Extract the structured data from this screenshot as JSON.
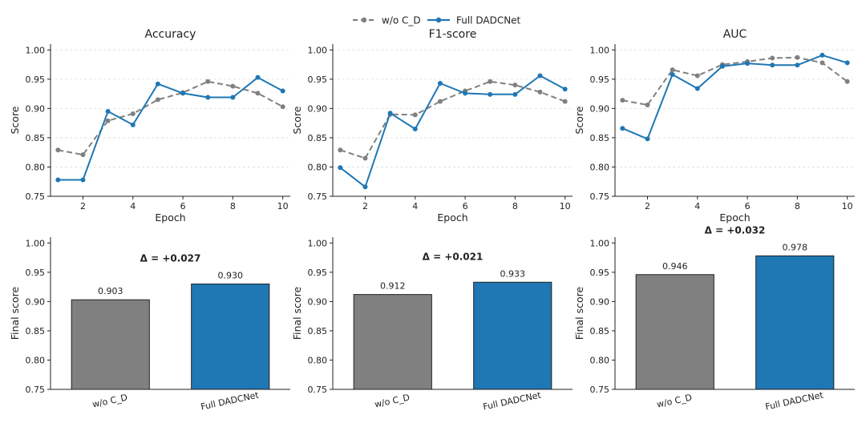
{
  "legend": {
    "placement": "top-center",
    "items": [
      {
        "label": "w/o C_D",
        "color": "#808080",
        "style": "dashed"
      },
      {
        "label": "Full DADCNet",
        "color": "#1f77b4",
        "style": "solid"
      }
    ]
  },
  "chart_data": [
    {
      "type": "line",
      "title": "Accuracy",
      "xlabel": "Epoch",
      "ylabel": "Score",
      "x": [
        1,
        2,
        3,
        4,
        5,
        6,
        7,
        8,
        9,
        10
      ],
      "xlim": [
        0.7,
        10.3
      ],
      "ylim": [
        0.75,
        1.01
      ],
      "xticks": [
        2,
        4,
        6,
        8,
        10
      ],
      "yticks": [
        0.75,
        0.8,
        0.85,
        0.9,
        0.95,
        1.0
      ],
      "grid": "horizontal-dashed",
      "series": [
        {
          "name": "w/o C_D",
          "values": [
            0.829,
            0.821,
            0.879,
            0.891,
            0.915,
            0.927,
            0.946,
            0.938,
            0.926,
            0.903
          ]
        },
        {
          "name": "Full DADCNet",
          "values": [
            0.778,
            0.778,
            0.895,
            0.872,
            0.942,
            0.926,
            0.919,
            0.919,
            0.953,
            0.93
          ]
        }
      ]
    },
    {
      "type": "line",
      "title": "F1-score",
      "xlabel": "Epoch",
      "ylabel": "Score",
      "x": [
        1,
        2,
        3,
        4,
        5,
        6,
        7,
        8,
        9,
        10
      ],
      "xlim": [
        0.7,
        10.3
      ],
      "ylim": [
        0.75,
        1.01
      ],
      "xticks": [
        2,
        4,
        6,
        8,
        10
      ],
      "yticks": [
        0.75,
        0.8,
        0.85,
        0.9,
        0.95,
        1.0
      ],
      "grid": "horizontal-dashed",
      "series": [
        {
          "name": "w/o C_D",
          "values": [
            0.829,
            0.815,
            0.89,
            0.889,
            0.912,
            0.93,
            0.946,
            0.94,
            0.928,
            0.912
          ]
        },
        {
          "name": "Full DADCNet",
          "values": [
            0.799,
            0.766,
            0.892,
            0.865,
            0.943,
            0.926,
            0.924,
            0.924,
            0.956,
            0.933
          ]
        }
      ]
    },
    {
      "type": "line",
      "title": "AUC",
      "xlabel": "Epoch",
      "ylabel": "Score",
      "x": [
        1,
        2,
        3,
        4,
        5,
        6,
        7,
        8,
        9,
        10
      ],
      "xlim": [
        0.7,
        10.3
      ],
      "ylim": [
        0.75,
        1.01
      ],
      "xticks": [
        2,
        4,
        6,
        8,
        10
      ],
      "yticks": [
        0.75,
        0.8,
        0.85,
        0.9,
        0.95,
        1.0
      ],
      "grid": "horizontal-dashed",
      "series": [
        {
          "name": "w/o C_D",
          "values": [
            0.914,
            0.906,
            0.966,
            0.956,
            0.975,
            0.98,
            0.986,
            0.987,
            0.978,
            0.946
          ]
        },
        {
          "name": "Full DADCNet",
          "values": [
            0.866,
            0.848,
            0.958,
            0.934,
            0.972,
            0.977,
            0.974,
            0.974,
            0.991,
            0.978
          ]
        }
      ]
    },
    {
      "type": "bar",
      "title": "",
      "xlabel": "",
      "ylabel": "Final score",
      "categories": [
        "w/o C_D",
        "Full DADCNet"
      ],
      "values": [
        0.903,
        0.93
      ],
      "value_labels": [
        "0.903",
        "0.930"
      ],
      "colors": [
        "#808080",
        "#1f77b4"
      ],
      "annotation": "Δ = +0.027",
      "ylim": [
        0.75,
        1.01
      ],
      "yticks": [
        0.75,
        0.8,
        0.85,
        0.9,
        0.95,
        1.0
      ]
    },
    {
      "type": "bar",
      "title": "",
      "xlabel": "",
      "ylabel": "Final score",
      "categories": [
        "w/o C_D",
        "Full DADCNet"
      ],
      "values": [
        0.912,
        0.933
      ],
      "value_labels": [
        "0.912",
        "0.933"
      ],
      "colors": [
        "#808080",
        "#1f77b4"
      ],
      "annotation": "Δ = +0.021",
      "ylim": [
        0.75,
        1.01
      ],
      "yticks": [
        0.75,
        0.8,
        0.85,
        0.9,
        0.95,
        1.0
      ]
    },
    {
      "type": "bar",
      "title": "",
      "xlabel": "",
      "ylabel": "Final score",
      "categories": [
        "w/o C_D",
        "Full DADCNet"
      ],
      "values": [
        0.946,
        0.978
      ],
      "value_labels": [
        "0.946",
        "0.978"
      ],
      "colors": [
        "#808080",
        "#1f77b4"
      ],
      "annotation": "Δ = +0.032",
      "ylim": [
        0.75,
        1.01
      ],
      "yticks": [
        0.75,
        0.8,
        0.85,
        0.9,
        0.95,
        1.0
      ]
    }
  ]
}
